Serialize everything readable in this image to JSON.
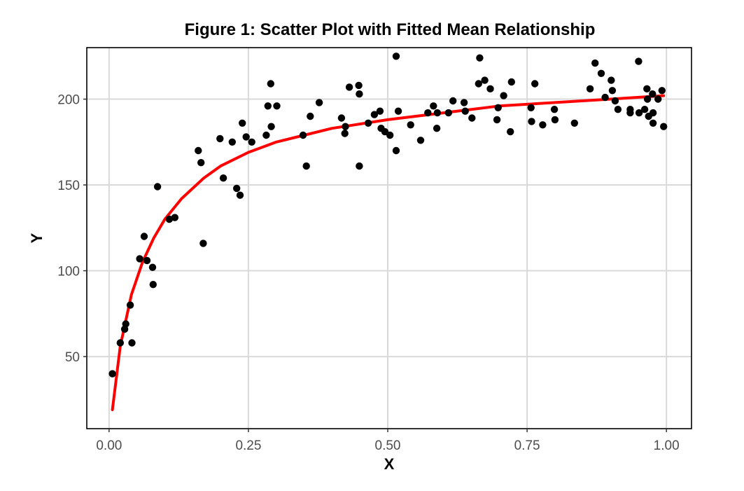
{
  "chart_data": {
    "type": "scatter",
    "title": "Figure 1: Scatter Plot with Fitted Mean Relationship",
    "xlabel": "X",
    "ylabel": "Y",
    "xlim": [
      -0.04,
      1.045
    ],
    "ylim": [
      8,
      230
    ],
    "xticks": [
      0,
      0.25,
      0.5,
      0.75,
      1
    ],
    "xtick_labels": [
      "0.00",
      "0.25",
      "0.50",
      "0.75",
      "1.00"
    ],
    "yticks": [
      50,
      100,
      150,
      200
    ],
    "ytick_labels": [
      "50",
      "100",
      "150",
      "200"
    ],
    "grid": true,
    "legend": "none",
    "colors": {
      "points": "#000000",
      "fit": "#ff0000",
      "grid": "#d9d9d9",
      "frame": "#000000"
    },
    "fit_curve": {
      "description_from_image": "fitted mean",
      "x": [
        0.006,
        0.02,
        0.04,
        0.06,
        0.08,
        0.1,
        0.13,
        0.17,
        0.2,
        0.25,
        0.3,
        0.35,
        0.4,
        0.5,
        0.6,
        0.7,
        0.8,
        0.9,
        0.995
      ],
      "y": [
        19,
        56,
        86,
        105,
        119,
        130,
        142,
        154,
        161,
        169,
        175,
        179,
        183,
        188,
        192,
        196,
        198,
        200,
        202
      ]
    },
    "points": [
      {
        "x": 0.006,
        "y": 40
      },
      {
        "x": 0.02,
        "y": 58
      },
      {
        "x": 0.028,
        "y": 66
      },
      {
        "x": 0.03,
        "y": 69
      },
      {
        "x": 0.038,
        "y": 80
      },
      {
        "x": 0.041,
        "y": 58
      },
      {
        "x": 0.055,
        "y": 107
      },
      {
        "x": 0.063,
        "y": 120
      },
      {
        "x": 0.068,
        "y": 106
      },
      {
        "x": 0.078,
        "y": 102
      },
      {
        "x": 0.079,
        "y": 92
      },
      {
        "x": 0.087,
        "y": 149
      },
      {
        "x": 0.108,
        "y": 130
      },
      {
        "x": 0.118,
        "y": 131
      },
      {
        "x": 0.16,
        "y": 170
      },
      {
        "x": 0.165,
        "y": 163
      },
      {
        "x": 0.169,
        "y": 116
      },
      {
        "x": 0.199,
        "y": 177
      },
      {
        "x": 0.205,
        "y": 154
      },
      {
        "x": 0.221,
        "y": 175
      },
      {
        "x": 0.229,
        "y": 148
      },
      {
        "x": 0.235,
        "y": 144
      },
      {
        "x": 0.239,
        "y": 186
      },
      {
        "x": 0.246,
        "y": 178
      },
      {
        "x": 0.256,
        "y": 175
      },
      {
        "x": 0.282,
        "y": 179
      },
      {
        "x": 0.285,
        "y": 196
      },
      {
        "x": 0.29,
        "y": 209
      },
      {
        "x": 0.291,
        "y": 184
      },
      {
        "x": 0.301,
        "y": 196
      },
      {
        "x": 0.348,
        "y": 179
      },
      {
        "x": 0.354,
        "y": 161
      },
      {
        "x": 0.361,
        "y": 190
      },
      {
        "x": 0.377,
        "y": 198
      },
      {
        "x": 0.417,
        "y": 189
      },
      {
        "x": 0.423,
        "y": 180
      },
      {
        "x": 0.424,
        "y": 184
      },
      {
        "x": 0.431,
        "y": 207
      },
      {
        "x": 0.448,
        "y": 208
      },
      {
        "x": 0.449,
        "y": 203
      },
      {
        "x": 0.449,
        "y": 161
      },
      {
        "x": 0.465,
        "y": 186
      },
      {
        "x": 0.476,
        "y": 191
      },
      {
        "x": 0.486,
        "y": 193
      },
      {
        "x": 0.488,
        "y": 183
      },
      {
        "x": 0.495,
        "y": 181
      },
      {
        "x": 0.504,
        "y": 179
      },
      {
        "x": 0.515,
        "y": 225
      },
      {
        "x": 0.515,
        "y": 170
      },
      {
        "x": 0.519,
        "y": 193
      },
      {
        "x": 0.541,
        "y": 185
      },
      {
        "x": 0.559,
        "y": 176
      },
      {
        "x": 0.572,
        "y": 192
      },
      {
        "x": 0.582,
        "y": 196
      },
      {
        "x": 0.588,
        "y": 183
      },
      {
        "x": 0.589,
        "y": 192
      },
      {
        "x": 0.609,
        "y": 192
      },
      {
        "x": 0.617,
        "y": 199
      },
      {
        "x": 0.637,
        "y": 198
      },
      {
        "x": 0.639,
        "y": 193
      },
      {
        "x": 0.651,
        "y": 189
      },
      {
        "x": 0.663,
        "y": 209
      },
      {
        "x": 0.665,
        "y": 224
      },
      {
        "x": 0.674,
        "y": 211
      },
      {
        "x": 0.684,
        "y": 206
      },
      {
        "x": 0.696,
        "y": 188
      },
      {
        "x": 0.698,
        "y": 195
      },
      {
        "x": 0.708,
        "y": 202
      },
      {
        "x": 0.72,
        "y": 181
      },
      {
        "x": 0.722,
        "y": 210
      },
      {
        "x": 0.757,
        "y": 195
      },
      {
        "x": 0.758,
        "y": 187
      },
      {
        "x": 0.764,
        "y": 209
      },
      {
        "x": 0.778,
        "y": 185
      },
      {
        "x": 0.799,
        "y": 194
      },
      {
        "x": 0.8,
        "y": 188
      },
      {
        "x": 0.835,
        "y": 186
      },
      {
        "x": 0.863,
        "y": 206
      },
      {
        "x": 0.872,
        "y": 221
      },
      {
        "x": 0.883,
        "y": 215
      },
      {
        "x": 0.89,
        "y": 201
      },
      {
        "x": 0.901,
        "y": 211
      },
      {
        "x": 0.903,
        "y": 205
      },
      {
        "x": 0.908,
        "y": 199
      },
      {
        "x": 0.913,
        "y": 194
      },
      {
        "x": 0.935,
        "y": 192
      },
      {
        "x": 0.935,
        "y": 194
      },
      {
        "x": 0.95,
        "y": 222
      },
      {
        "x": 0.951,
        "y": 192
      },
      {
        "x": 0.961,
        "y": 194
      },
      {
        "x": 0.965,
        "y": 206
      },
      {
        "x": 0.966,
        "y": 200
      },
      {
        "x": 0.968,
        "y": 190
      },
      {
        "x": 0.975,
        "y": 203
      },
      {
        "x": 0.976,
        "y": 192
      },
      {
        "x": 0.976,
        "y": 186
      },
      {
        "x": 0.985,
        "y": 200
      },
      {
        "x": 0.992,
        "y": 205
      },
      {
        "x": 0.995,
        "y": 184
      }
    ]
  }
}
